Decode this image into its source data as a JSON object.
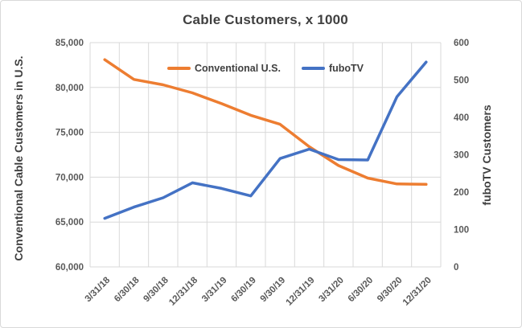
{
  "chart_data": {
    "type": "line",
    "title": "Cable Customers, x 1000",
    "ylabel_left": "Conventional Cable Customers in U.S.",
    "ylabel_right": "fuboTV Customers",
    "categories": [
      "3/31/18",
      "6/30/18",
      "9/30/18",
      "12/31/18",
      "3/31/19",
      "6/30/19",
      "9/30/19",
      "12/31/19",
      "3/31/20",
      "6/30/20",
      "9/30/20",
      "12/31/20"
    ],
    "series": [
      {
        "name": "Conventional U.S.",
        "axis": "left",
        "color": "#ED7D31",
        "values": [
          83100,
          80900,
          80300,
          79400,
          78200,
          76900,
          75900,
          73400,
          71300,
          69900,
          69250,
          69200
        ]
      },
      {
        "name": "fuboTV",
        "axis": "right",
        "color": "#4472C4",
        "values": [
          130,
          160,
          185,
          225,
          210,
          190,
          290,
          315,
          287,
          286,
          455,
          548
        ]
      }
    ],
    "axis_left": {
      "min": 60000,
      "max": 85000,
      "step": 5000
    },
    "axis_right": {
      "min": 0,
      "max": 600,
      "step": 100
    },
    "grid": true,
    "legend_position": "top-inside",
    "colors": {
      "grid": "#d9d9d9",
      "tick_text": "#595959",
      "title_text": "#404040"
    }
  }
}
